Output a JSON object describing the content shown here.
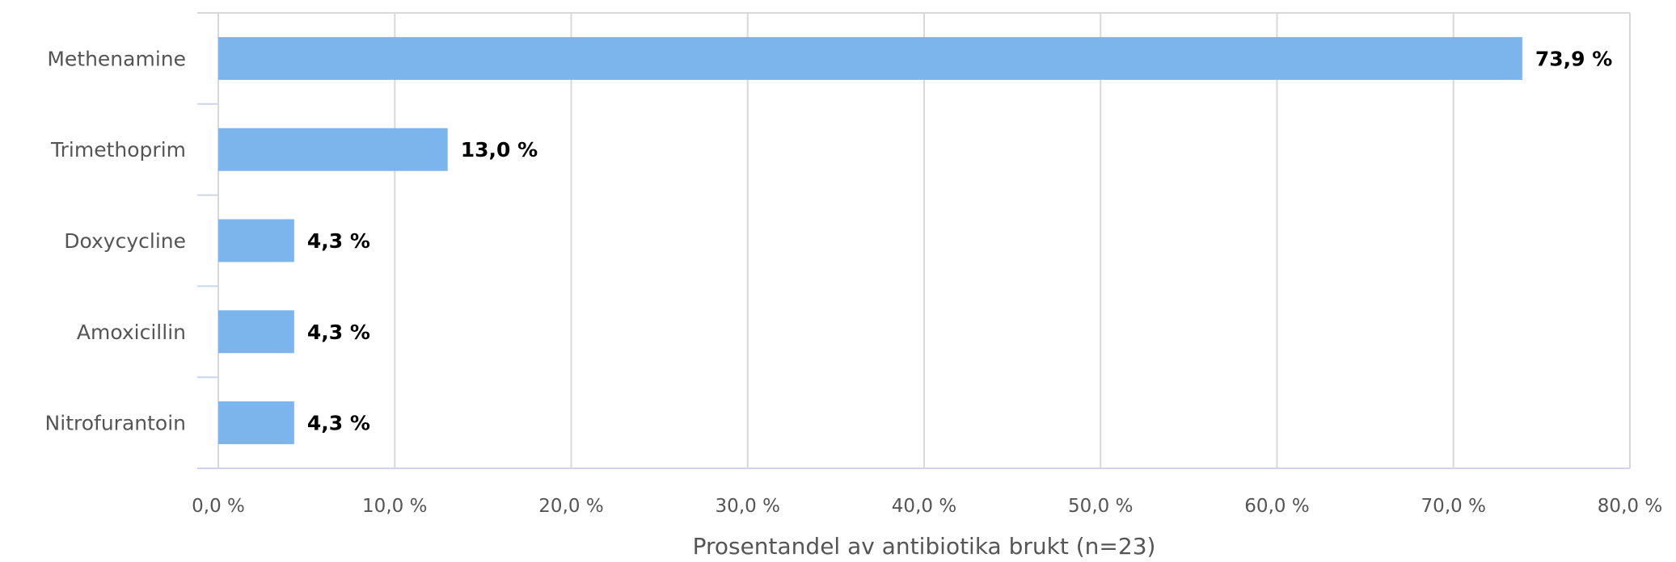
{
  "chart_data": {
    "type": "bar",
    "orientation": "horizontal",
    "categories": [
      "Methenamine",
      "Trimethoprim",
      "Doxycycline",
      "Amoxicillin",
      "Nitrofurantoin"
    ],
    "values": [
      73.9,
      13.0,
      4.3,
      4.3,
      4.3
    ],
    "data_labels": [
      "73,9 %",
      "13,0 %",
      "4,3 %",
      "4,3 %",
      "4,3 %"
    ],
    "xlim": [
      0,
      80
    ],
    "x_ticks": [
      0,
      10,
      20,
      30,
      40,
      50,
      60,
      70,
      80
    ],
    "x_tick_labels": [
      "0,0 %",
      "10,0 %",
      "20,0 %",
      "30,0 %",
      "40,0 %",
      "50,0 %",
      "60,0 %",
      "70,0 %",
      "80,0 %"
    ],
    "xlabel": "Prosentandel av antibiotika brukt (n=23)",
    "ylabel": "",
    "title": "",
    "grid": true,
    "legend": "none",
    "bar_color": "#7cb5ec"
  }
}
